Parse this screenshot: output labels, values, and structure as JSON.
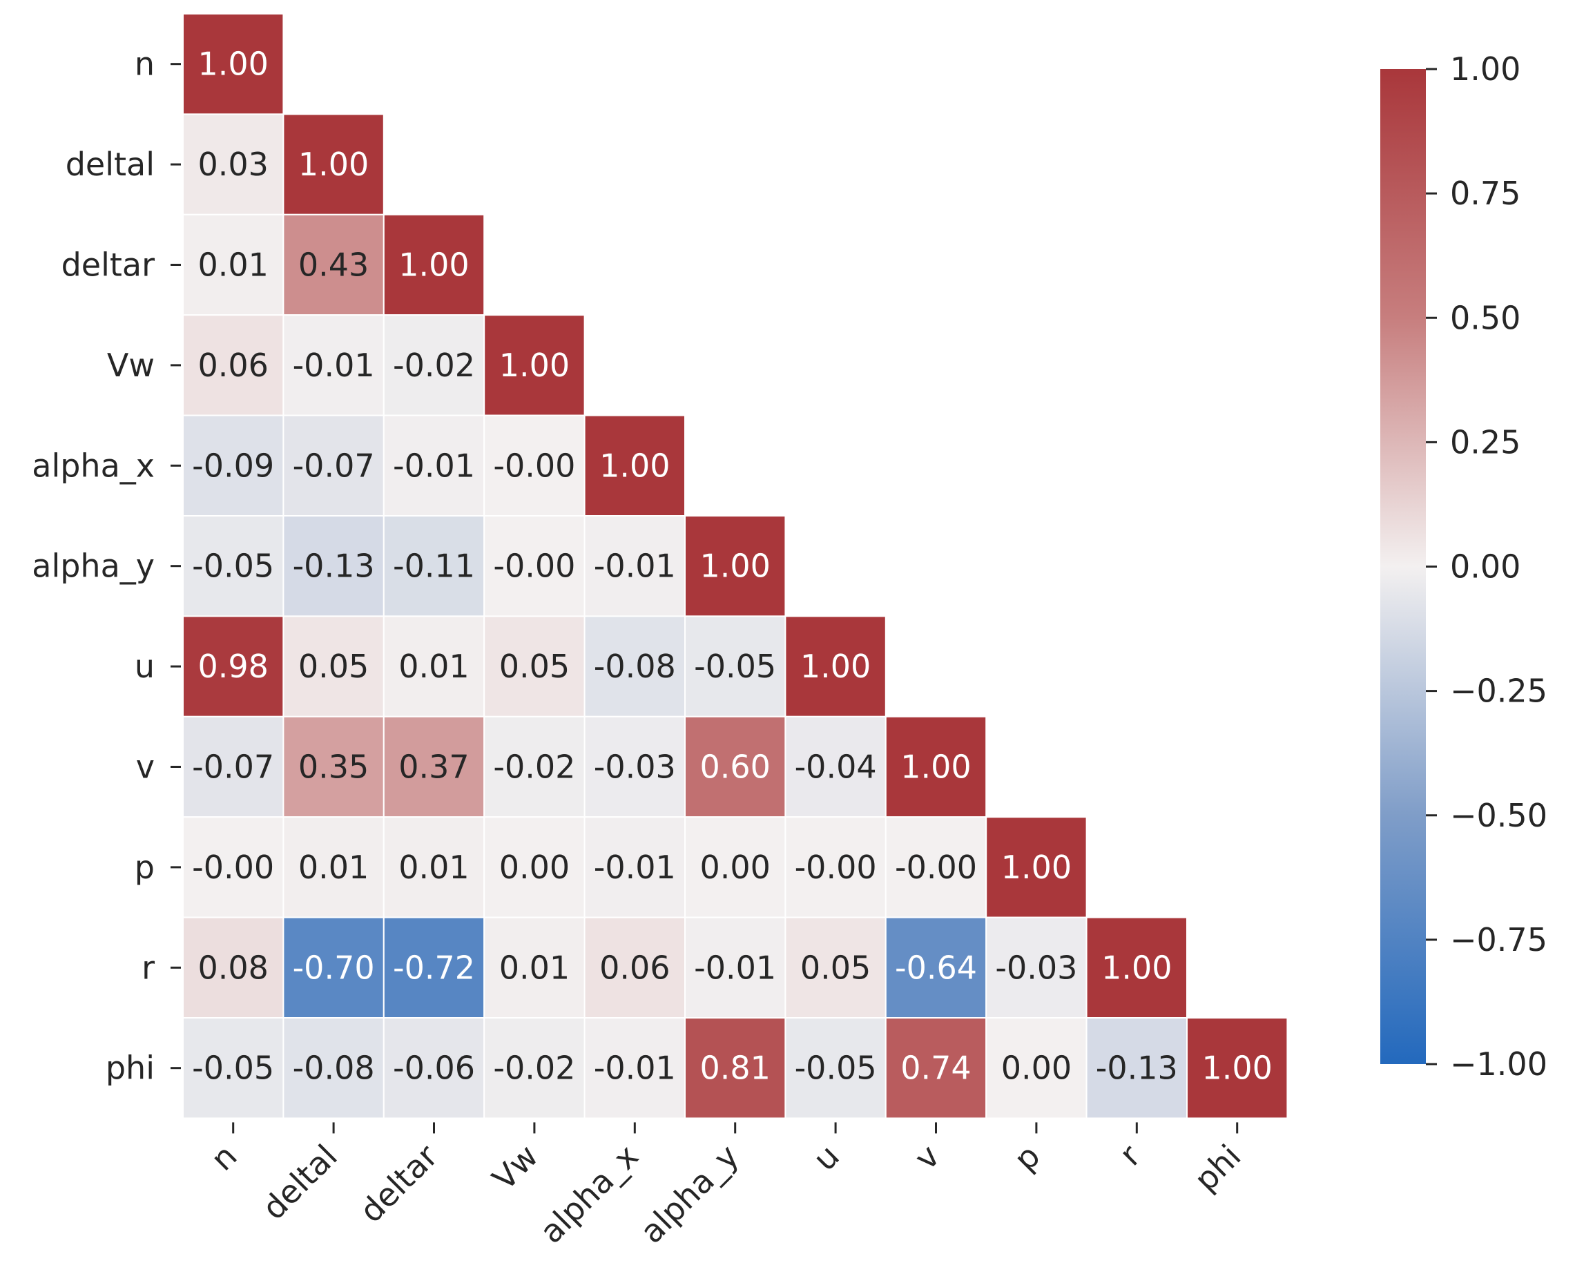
{
  "chart_data": {
    "type": "heatmap",
    "title": "",
    "xlabel": "",
    "ylabel": "",
    "mask": "upper triangle hidden",
    "labels": [
      "n",
      "deltal",
      "deltar",
      "Vw",
      "alpha_x",
      "alpha_y",
      "u",
      "v",
      "p",
      "r",
      "phi"
    ],
    "cell_text": [
      [
        "1.00"
      ],
      [
        "0.03",
        "1.00"
      ],
      [
        "0.01",
        "0.43",
        "1.00"
      ],
      [
        "0.06",
        "-0.01",
        "-0.02",
        "1.00"
      ],
      [
        "-0.09",
        "-0.07",
        "-0.01",
        "-0.00",
        "1.00"
      ],
      [
        "-0.05",
        "-0.13",
        "-0.11",
        "-0.00",
        "-0.01",
        "1.00"
      ],
      [
        "0.98",
        "0.05",
        "0.01",
        "0.05",
        "-0.08",
        "-0.05",
        "1.00"
      ],
      [
        "-0.07",
        "0.35",
        "0.37",
        "-0.02",
        "-0.03",
        "0.60",
        "-0.04",
        "1.00"
      ],
      [
        "-0.00",
        "0.01",
        "0.01",
        "0.00",
        "-0.01",
        "0.00",
        "-0.00",
        "-0.00",
        "1.00"
      ],
      [
        "0.08",
        "-0.70",
        "-0.72",
        "0.01",
        "0.06",
        "-0.01",
        "0.05",
        "-0.64",
        "-0.03",
        "1.00"
      ],
      [
        "-0.05",
        "-0.08",
        "-0.06",
        "-0.02",
        "-0.01",
        "0.81",
        "-0.05",
        "0.74",
        "0.00",
        "-0.13",
        "1.00"
      ]
    ],
    "colorbar": {
      "colormap": "vlag",
      "range": [
        -1.0,
        1.0
      ],
      "ticks": [
        1.0,
        0.75,
        0.5,
        0.25,
        0.0,
        -0.25,
        -0.5,
        -0.75,
        -1.0
      ],
      "tick_labels": [
        "1.00",
        "0.75",
        "0.50",
        "0.25",
        "0.00",
        "−0.25",
        "−0.50",
        "−0.75",
        "−1.00"
      ]
    }
  }
}
